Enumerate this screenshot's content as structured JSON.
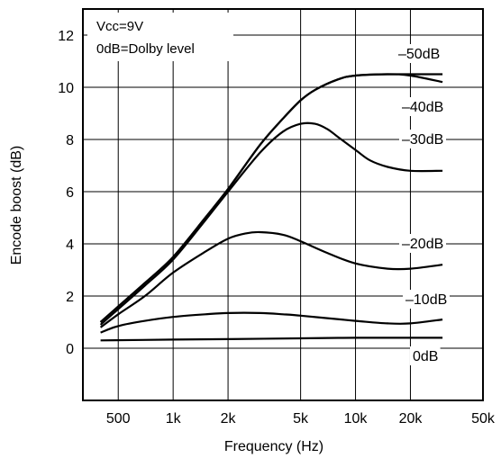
{
  "chart_data": {
    "type": "line",
    "xlabel": "Frequency (Hz)",
    "ylabel": "Encode boost (dB)",
    "xscale": "log",
    "xlim": [
      320,
      50000
    ],
    "ylim": [
      -2,
      13
    ],
    "grid": true,
    "x_ticks": [
      {
        "value": 500,
        "label": "500"
      },
      {
        "value": 1000,
        "label": "1k"
      },
      {
        "value": 2000,
        "label": "2k"
      },
      {
        "value": 5000,
        "label": "5k"
      },
      {
        "value": 10000,
        "label": "10k"
      },
      {
        "value": 20000,
        "label": "20k"
      },
      {
        "value": 50000,
        "label": "50k"
      }
    ],
    "y_ticks": [
      {
        "value": 0,
        "label": "0"
      },
      {
        "value": 2,
        "label": "2"
      },
      {
        "value": 4,
        "label": "4"
      },
      {
        "value": 6,
        "label": "6"
      },
      {
        "value": 8,
        "label": "8"
      },
      {
        "value": 10,
        "label": "10"
      },
      {
        "value": 12,
        "label": "12"
      }
    ],
    "annotations": [
      "Vcc=9V",
      "0dB=Dolby level"
    ],
    "series": [
      {
        "name": "–50dB",
        "x": [
          400,
          500,
          700,
          1000,
          1500,
          2000,
          3000,
          4000,
          5000,
          6000,
          8000,
          10000,
          15000,
          20000,
          30000
        ],
        "y": [
          1.0,
          1.6,
          2.5,
          3.5,
          5.0,
          6.1,
          7.8,
          8.8,
          9.5,
          9.9,
          10.3,
          10.45,
          10.5,
          10.5,
          10.5
        ]
      },
      {
        "name": "–40dB",
        "x": [
          400,
          500,
          700,
          1000,
          1500,
          2000,
          3000,
          4000,
          5000,
          6000,
          8000,
          10000,
          15000,
          20000,
          30000
        ],
        "y": [
          1.0,
          1.6,
          2.5,
          3.5,
          5.0,
          6.1,
          7.8,
          8.8,
          9.5,
          9.9,
          10.3,
          10.45,
          10.5,
          10.45,
          10.2
        ]
      },
      {
        "name": "–30dB",
        "x": [
          400,
          500,
          700,
          1000,
          1500,
          2000,
          3000,
          4000,
          5000,
          6000,
          7000,
          8000,
          10000,
          12000,
          15000,
          20000,
          30000
        ],
        "y": [
          0.9,
          1.5,
          2.4,
          3.4,
          4.9,
          6.0,
          7.5,
          8.3,
          8.6,
          8.6,
          8.4,
          8.1,
          7.6,
          7.2,
          6.95,
          6.8,
          6.8
        ]
      },
      {
        "name": "–20dB",
        "x": [
          400,
          500,
          700,
          1000,
          1500,
          2000,
          2500,
          3000,
          4000,
          5000,
          7000,
          10000,
          15000,
          20000,
          30000
        ],
        "y": [
          0.8,
          1.3,
          2.0,
          2.9,
          3.7,
          4.2,
          4.4,
          4.45,
          4.35,
          4.1,
          3.65,
          3.25,
          3.05,
          3.05,
          3.2
        ]
      },
      {
        "name": "–10dB",
        "x": [
          400,
          500,
          700,
          1000,
          1500,
          2000,
          3000,
          4000,
          5000,
          7000,
          10000,
          15000,
          20000,
          30000
        ],
        "y": [
          0.6,
          0.85,
          1.05,
          1.2,
          1.3,
          1.35,
          1.35,
          1.3,
          1.25,
          1.15,
          1.05,
          0.95,
          0.95,
          1.1
        ]
      },
      {
        "name": "0dB",
        "x": [
          400,
          1000,
          2000,
          5000,
          10000,
          20000,
          30000
        ],
        "y": [
          0.3,
          0.33,
          0.35,
          0.38,
          0.4,
          0.4,
          0.4
        ]
      }
    ],
    "series_labels": [
      "–50dB",
      "–40dB",
      "–30dB",
      "–20dB",
      "–10dB",
      "0dB"
    ]
  }
}
